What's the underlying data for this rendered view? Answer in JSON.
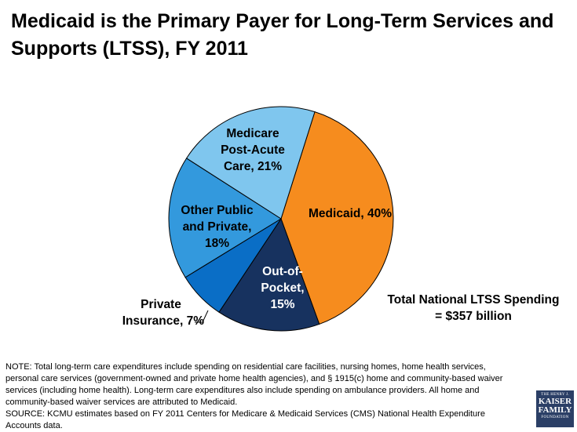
{
  "title": "Medicaid is the Primary Payer for Long-Term Services and Supports (LTSS), FY 2011",
  "chart_data": {
    "type": "pie",
    "title": "Medicaid is the Primary Payer for Long-Term Services and Supports (LTSS), FY 2011",
    "slices": [
      {
        "name": "Medicaid",
        "value": 40,
        "color": "#f68c1e"
      },
      {
        "name": "Out-of-Pocket",
        "value": 15,
        "color": "#17325f"
      },
      {
        "name": "Private Insurance",
        "value": 7,
        "color": "#0a6ec6"
      },
      {
        "name": "Other Public and Private",
        "value": 18,
        "color": "#3399dd"
      },
      {
        "name": "Medicare Post-Acute Care",
        "value": 21,
        "color": "#7fc6ee"
      }
    ],
    "labels": {
      "medicaid": [
        "Medicaid, 40%"
      ],
      "out_of_pocket": [
        "Out-of-",
        "Pocket,",
        "15%"
      ],
      "private_insurance": [
        "Private",
        "Insurance, 7%"
      ],
      "other_public_private": [
        "Other Public",
        "and Private,",
        "18%"
      ],
      "medicare": [
        "Medicare",
        "Post-Acute",
        "Care, 21%"
      ]
    }
  },
  "total_spending": [
    "Total National LTSS Spending",
    "= $357 billion"
  ],
  "note": "NOTE: Total long-term care expenditures include spending on residential care facilities, nursing homes, home health services, personal care services (government-owned and private home health agencies), and § 1915(c) home and community-based waiver services (including home health). Long-term care expenditures also include spending on ambulance providers. All home and community-based waiver services are attributed to Medicaid.",
  "source": "SOURCE: KCMU estimates based on FY 2011 Centers for Medicare & Medicaid Services (CMS) National Health Expenditure Accounts data.",
  "logo": [
    "THE HENRY J.",
    "KAISER",
    "FAMILY",
    "FOUNDATION"
  ]
}
